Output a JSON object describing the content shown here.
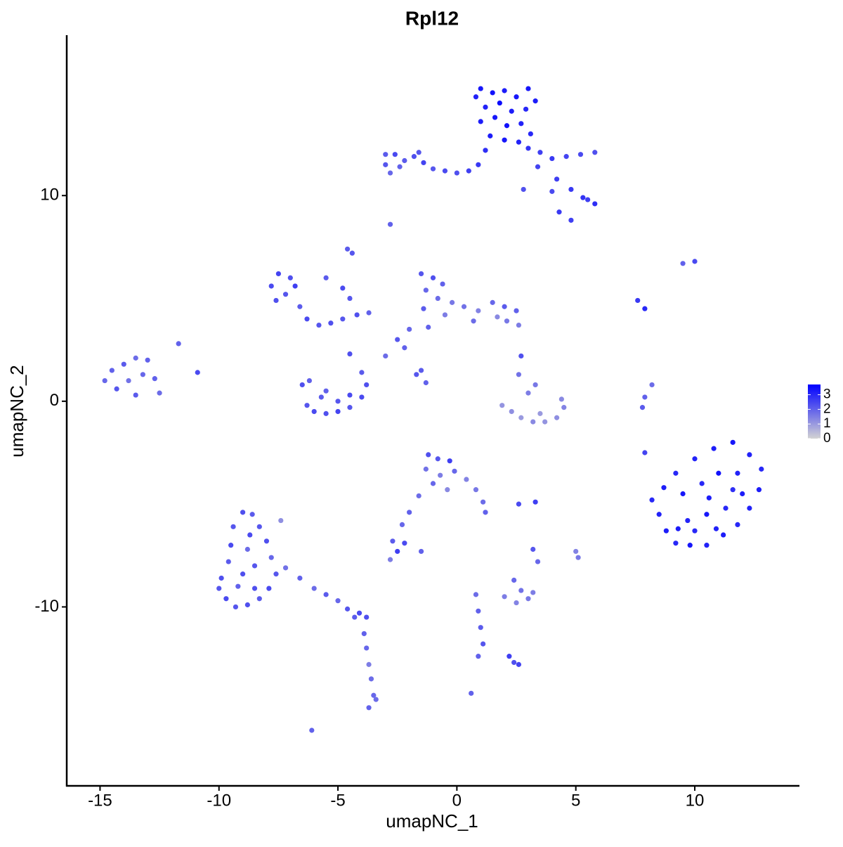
{
  "chart_data": {
    "type": "scatter",
    "title": "Rpl12",
    "x_label": "umapNC_1",
    "y_label": "umapNC_2",
    "x": [
      1.0,
      1.5,
      2.0,
      2.5,
      1.2,
      1.8,
      2.3,
      2.9,
      1.0,
      1.6,
      2.1,
      2.7,
      3.1,
      1.4,
      2.0,
      2.6,
      1.2,
      3.3,
      0.8,
      3.0,
      -3.0,
      -2.6,
      -2.2,
      -1.8,
      -1.4,
      -1.0,
      -0.5,
      0.0,
      0.5,
      0.9,
      -2.8,
      -2.4,
      -3.0,
      -1.6,
      3.0,
      3.5,
      4.0,
      4.6,
      5.2,
      5.8,
      3.4,
      4.2,
      4.8,
      5.3,
      5.8,
      5.5,
      4.3,
      4.8,
      2.8,
      4.0,
      -2.8,
      -4.6,
      -4.4,
      9.5,
      10.0,
      7.6,
      7.9,
      -7.8,
      -7.5,
      -7.0,
      -7.2,
      -6.8,
      -7.6,
      -6.6,
      -6.3,
      -5.8,
      -5.3,
      -4.8,
      -4.2,
      -3.7,
      -5.5,
      -4.8,
      -4.5,
      -1.5,
      -1.0,
      -0.6,
      -1.3,
      -0.8,
      -0.2,
      -1.4,
      -0.5,
      0.3,
      0.9,
      1.5,
      2.0,
      2.5,
      2.1,
      2.6,
      1.7,
      0.7,
      -1.2,
      -2.5,
      -2.2,
      -3.0,
      -2.0,
      -4.5,
      -1.5,
      -1.7,
      -1.3,
      2.7,
      -14.8,
      -14.5,
      -14.0,
      -13.5,
      -13.0,
      -14.3,
      -13.8,
      -13.2,
      -12.7,
      -13.5,
      -12.5,
      -11.7,
      -10.9,
      -6.5,
      -6.3,
      -6.0,
      -5.5,
      -5.0,
      -4.5,
      -4.0,
      -3.8,
      -4.0,
      -6.2,
      -5.7,
      -5.0,
      -4.5,
      -5.5,
      1.9,
      2.3,
      2.7,
      3.2,
      3.7,
      4.2,
      4.5,
      3.0,
      3.3,
      2.6,
      4.4,
      3.5,
      8.2,
      7.9,
      7.8,
      7.9,
      8.2,
      8.5,
      8.8,
      9.2,
      9.8,
      10.5,
      11.2,
      11.8,
      12.3,
      12.7,
      12.8,
      12.3,
      11.6,
      10.8,
      10.0,
      9.2,
      8.7,
      9.5,
      10.3,
      11.0,
      11.8,
      12.0,
      11.3,
      10.5,
      9.7,
      9.3,
      10.0,
      10.9,
      11.6,
      10.6,
      -1.2,
      -0.8,
      -0.3,
      -1.3,
      -0.7,
      -0.1,
      0.4,
      0.8,
      1.1,
      1.2,
      -1.0,
      -0.4,
      -1.6,
      -2.0,
      -2.3,
      2.6,
      3.3,
      -2.7,
      -2.5,
      -2.8,
      -2.2,
      -1.5,
      3.2,
      3.4,
      5.0,
      5.1,
      2.4,
      -9.9,
      -10.0,
      -9.7,
      -9.3,
      -8.8,
      -8.3,
      -7.9,
      -7.6,
      -7.8,
      -8.0,
      -8.3,
      -8.6,
      -9.0,
      -9.4,
      -9.5,
      -9.6,
      -9.0,
      -8.5,
      -8.8,
      -8.7,
      -9.2,
      -8.5,
      -7.2,
      -7.4,
      -6.6,
      -6.0,
      -5.5,
      -5.0,
      -4.6,
      -4.1,
      -3.8,
      -4.3,
      -3.9,
      -3.8,
      -3.7,
      -3.6,
      -3.5,
      -3.7,
      -3.4,
      -6.1,
      0.8,
      0.9,
      1.0,
      1.1,
      0.9,
      2.0,
      2.5,
      3.0,
      3.2,
      2.7,
      2.2,
      2.4,
      2.6,
      0.6
    ],
    "y": [
      15.2,
      15.0,
      15.1,
      14.8,
      14.3,
      14.5,
      14.1,
      14.2,
      13.6,
      13.8,
      13.4,
      13.5,
      13.0,
      12.9,
      12.7,
      12.6,
      12.2,
      14.6,
      14.8,
      15.2,
      11.5,
      12.0,
      11.7,
      11.9,
      11.6,
      11.3,
      11.2,
      11.1,
      11.2,
      11.5,
      11.1,
      11.4,
      12.0,
      12.1,
      12.3,
      12.1,
      11.8,
      11.9,
      12.0,
      12.1,
      11.4,
      10.8,
      10.3,
      9.9,
      9.6,
      9.8,
      9.2,
      8.8,
      10.3,
      10.2,
      8.6,
      7.4,
      7.2,
      6.7,
      6.8,
      4.9,
      4.5,
      5.6,
      6.2,
      6.0,
      5.2,
      5.6,
      4.9,
      4.6,
      4.0,
      3.7,
      3.8,
      4.0,
      4.2,
      4.3,
      6.0,
      5.5,
      5.0,
      6.2,
      6.0,
      5.7,
      5.4,
      5.0,
      4.8,
      4.5,
      4.2,
      4.6,
      4.4,
      4.8,
      4.6,
      4.4,
      3.9,
      3.7,
      4.1,
      3.9,
      3.6,
      3.0,
      2.6,
      2.2,
      3.5,
      2.3,
      1.5,
      1.3,
      0.9,
      2.2,
      1.0,
      1.5,
      1.8,
      2.1,
      2.0,
      0.6,
      1.0,
      1.3,
      1.1,
      0.3,
      0.4,
      2.8,
      1.4,
      0.8,
      -0.2,
      -0.5,
      -0.6,
      -0.5,
      -0.3,
      0.2,
      0.8,
      1.4,
      1.0,
      0.2,
      0.0,
      0.3,
      0.5,
      -0.2,
      -0.5,
      -0.8,
      -1.0,
      -1.0,
      -0.8,
      -0.3,
      0.4,
      0.8,
      1.3,
      0.1,
      -0.6,
      0.8,
      0.2,
      -0.3,
      -2.5,
      -4.8,
      -5.5,
      -6.3,
      -6.9,
      -7.0,
      -7.0,
      -6.5,
      -6.0,
      -5.2,
      -4.3,
      -3.3,
      -2.6,
      -2.0,
      -2.3,
      -2.8,
      -3.5,
      -4.2,
      -4.5,
      -4.0,
      -3.5,
      -3.5,
      -4.5,
      -5.2,
      -5.5,
      -5.8,
      -6.2,
      -6.3,
      -6.2,
      -4.3,
      -4.7,
      -2.6,
      -2.8,
      -2.9,
      -3.3,
      -3.6,
      -3.4,
      -3.8,
      -4.3,
      -4.9,
      -5.4,
      -4.0,
      -4.3,
      -4.6,
      -5.4,
      -6.0,
      -5.0,
      -4.9,
      -6.8,
      -7.3,
      -7.7,
      -6.9,
      -7.3,
      -7.2,
      -7.8,
      -7.3,
      -7.6,
      -8.7,
      -8.6,
      -9.1,
      -9.6,
      -10.0,
      -9.9,
      -9.6,
      -9.1,
      -8.4,
      -7.6,
      -6.8,
      -6.1,
      -5.5,
      -5.4,
      -6.1,
      -7.0,
      -7.8,
      -8.4,
      -8.0,
      -7.2,
      -6.5,
      -9.0,
      -9.1,
      -8.1,
      -5.8,
      -8.6,
      -9.1,
      -9.4,
      -9.7,
      -10.1,
      -10.3,
      -10.5,
      -10.5,
      -11.3,
      -12.0,
      -12.8,
      -13.5,
      -14.3,
      -14.9,
      -14.5,
      -16.0,
      -9.4,
      -10.2,
      -11.0,
      -11.8,
      -12.4,
      -9.5,
      -9.8,
      -9.6,
      -9.3,
      -9.2,
      -12.4,
      -12.7,
      -12.8,
      -14.2
    ],
    "values": [
      3.3,
      3.4,
      3.2,
      3.3,
      3.1,
      3.5,
      3.2,
      3.0,
      3.2,
      3.3,
      3.4,
      3.1,
      3.0,
      3.2,
      3.3,
      3.1,
      2.9,
      3.2,
      3.1,
      3.3,
      2.2,
      2.4,
      2.1,
      2.3,
      2.5,
      2.2,
      2.4,
      2.3,
      2.6,
      2.7,
      1.9,
      2.0,
      2.1,
      2.2,
      2.8,
      2.6,
      2.7,
      2.5,
      2.4,
      2.3,
      2.5,
      2.6,
      2.7,
      2.8,
      2.9,
      2.6,
      2.7,
      2.6,
      2.3,
      2.4,
      2.0,
      2.1,
      2.2,
      2.0,
      2.4,
      2.7,
      3.0,
      2.4,
      2.5,
      2.3,
      2.2,
      2.6,
      2.3,
      2.1,
      2.4,
      2.2,
      2.3,
      2.2,
      2.3,
      2.0,
      2.1,
      2.4,
      2.2,
      2.2,
      2.3,
      2.0,
      1.9,
      1.8,
      1.6,
      2.1,
      1.5,
      1.7,
      1.4,
      1.9,
      2.1,
      2.0,
      1.6,
      1.5,
      1.3,
      1.8,
      2.0,
      2.2,
      2.0,
      1.8,
      1.9,
      2.3,
      2.1,
      2.2,
      2.0,
      2.3,
      1.9,
      2.0,
      2.1,
      1.8,
      2.0,
      2.2,
      1.7,
      1.9,
      2.0,
      2.1,
      1.8,
      2.0,
      2.4,
      2.3,
      2.2,
      2.4,
      2.3,
      2.5,
      2.2,
      2.4,
      2.3,
      2.1,
      2.0,
      2.1,
      2.2,
      2.4,
      2.0,
      1.1,
      1.2,
      1.0,
      1.3,
      1.1,
      1.2,
      1.4,
      1.5,
      1.6,
      1.7,
      1.3,
      1.0,
      1.8,
      2.0,
      2.1,
      2.5,
      3.0,
      3.1,
      3.2,
      3.0,
      3.3,
      3.1,
      3.2,
      3.0,
      3.1,
      3.2,
      3.0,
      3.1,
      3.3,
      3.2,
      3.1,
      3.0,
      3.2,
      3.3,
      3.0,
      3.4,
      3.1,
      3.2,
      3.0,
      3.3,
      3.1,
      3.2,
      3.0,
      3.1,
      2.9,
      3.2,
      2.3,
      2.2,
      2.6,
      1.7,
      1.5,
      1.9,
      1.4,
      1.6,
      1.8,
      2.0,
      1.9,
      1.3,
      1.8,
      2.0,
      1.9,
      2.4,
      2.6,
      2.1,
      2.6,
      1.5,
      2.4,
      2.0,
      2.2,
      1.9,
      1.4,
      1.6,
      1.9,
      2.3,
      2.2,
      2.4,
      2.2,
      2.3,
      2.1,
      2.4,
      2.2,
      1.9,
      2.3,
      2.2,
      2.1,
      2.3,
      2.2,
      2.4,
      2.1,
      2.3,
      2.2,
      1.8,
      2.4,
      2.0,
      2.3,
      1.7,
      1.2,
      2.0,
      1.8,
      2.1,
      1.9,
      2.2,
      2.4,
      2.3,
      2.1,
      2.0,
      1.9,
      1.5,
      1.8,
      1.9,
      2.0,
      1.8,
      2.0,
      1.8,
      2.0,
      2.1,
      2.2,
      2.0,
      1.5,
      1.4,
      1.6,
      1.5,
      1.7,
      2.6,
      2.3,
      2.5,
      2.0
    ],
    "xlim": [
      -16.4,
      14.4
    ],
    "ylim": [
      -18.7,
      17.8
    ],
    "xticks": [
      -15,
      -10,
      -5,
      0,
      5,
      10
    ],
    "yticks": [
      -10,
      0,
      10
    ],
    "color_low": "#d3d3d3",
    "color_high": "#0000ff",
    "colorbar_lim": [
      0,
      3.7
    ],
    "colorbar_ticks": [
      0,
      1,
      2,
      3
    ]
  }
}
